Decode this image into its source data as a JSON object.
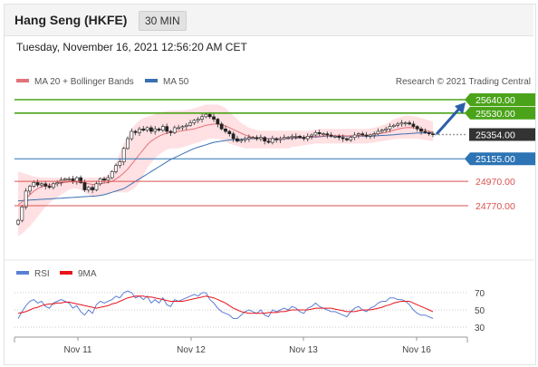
{
  "header": {
    "title": "Hang Seng (HKFE)",
    "timeframe": "30 MIN"
  },
  "timestamp": "Tuesday, November 16, 2021 12:56:20 AM CET",
  "legend": {
    "ma20_label": "MA 20 + Bollinger Bands",
    "ma50_label": "MA 50",
    "research": "Research © 2021 Trading Central",
    "rsi_label": "RSI",
    "ma9_label": "9MA"
  },
  "colors": {
    "resistance": "#4aa319",
    "support": "#2c74b4",
    "target": "#d9534f",
    "current": "#333333",
    "ma20": "#e2737a",
    "ma50": "#3a6fb0",
    "rsi": "#5b7fd6",
    "rsi_ma": "#e8141c",
    "band": "#ffd6d9"
  },
  "levels": [
    {
      "label": "25640.00",
      "value": 25640,
      "kind": "resistance"
    },
    {
      "label": "25530.00",
      "value": 25530,
      "kind": "resistance"
    },
    {
      "label": "25354.00",
      "value": 25354,
      "kind": "current"
    },
    {
      "label": "25155.00",
      "value": 25155,
      "kind": "support"
    },
    {
      "label": "24970.00",
      "value": 24970,
      "kind": "target"
    },
    {
      "label": "24770.00",
      "value": 24770,
      "kind": "target"
    }
  ],
  "chart_data": [
    {
      "type": "candlestick",
      "price_range": [
        24550,
        25750
      ],
      "x_labels": [
        "Nov 11",
        "Nov 12",
        "Nov 13",
        "Nov 16"
      ],
      "close": [
        24650,
        24760,
        24890,
        24930,
        24960,
        24940,
        24950,
        24930,
        24920,
        24950,
        24960,
        24980,
        24990,
        24990,
        24970,
        25000,
        24960,
        24900,
        24920,
        24900,
        24950,
        24990,
        24980,
        25000,
        25050,
        25100,
        25130,
        25240,
        25320,
        25380,
        25370,
        25400,
        25390,
        25410,
        25380,
        25400,
        25390,
        25420,
        25380,
        25370,
        25410,
        25410,
        25420,
        25430,
        25450,
        25470,
        25480,
        25500,
        25520,
        25500,
        25480,
        25440,
        25400,
        25380,
        25360,
        25320,
        25300,
        25310,
        25320,
        25330,
        25330,
        25320,
        25330,
        25300,
        25290,
        25320,
        25310,
        25320,
        25330,
        25330,
        25340,
        25340,
        25330,
        25320,
        25340,
        25350,
        25370,
        25360,
        25360,
        25350,
        25340,
        25340,
        25330,
        25320,
        25310,
        25330,
        25350,
        25360,
        25350,
        25340,
        25350,
        25360,
        25380,
        25390,
        25400,
        25420,
        25430,
        25440,
        25450,
        25450,
        25440,
        25420,
        25400,
        25380,
        25370,
        25360,
        25354
      ],
      "ma20": [
        24780,
        24800,
        24830,
        24860,
        24890,
        24910,
        24925,
        24935,
        24940,
        24945,
        24950,
        24955,
        24960,
        24965,
        24965,
        24965,
        24960,
        24955,
        24950,
        24945,
        24945,
        24950,
        24955,
        24960,
        24970,
        24990,
        25010,
        25040,
        25070,
        25110,
        25150,
        25190,
        25230,
        25270,
        25300,
        25320,
        25340,
        25355,
        25365,
        25370,
        25375,
        25380,
        25385,
        25390,
        25395,
        25400,
        25410,
        25420,
        25430,
        25435,
        25440,
        25440,
        25435,
        25425,
        25410,
        25395,
        25380,
        25365,
        25350,
        25340,
        25330,
        25325,
        25320,
        25318,
        25316,
        25316,
        25318,
        25320,
        25322,
        25324,
        25326,
        25328,
        25330,
        25332,
        25334,
        25336,
        25338,
        25340,
        25342,
        25343,
        25344,
        25344,
        25344,
        25344,
        25343,
        25342,
        25342,
        25343,
        25345,
        25347,
        25350,
        25355,
        25360,
        25365,
        25372,
        25380,
        25390,
        25398,
        25405,
        25410,
        25412,
        25410,
        25405,
        25398,
        25390,
        25382,
        25375
      ],
      "bb_upper": [
        25050,
        25040,
        25030,
        25020,
        25010,
        25005,
        25000,
        25000,
        25000,
        25000,
        25000,
        25000,
        25000,
        25000,
        25000,
        25000,
        25000,
        25000,
        25000,
        25000,
        25000,
        25005,
        25010,
        25020,
        25050,
        25120,
        25200,
        25280,
        25340,
        25400,
        25440,
        25470,
        25490,
        25500,
        25510,
        25520,
        25530,
        25540,
        25545,
        25550,
        25550,
        25550,
        25550,
        25555,
        25560,
        25570,
        25580,
        25590,
        25600,
        25600,
        25600,
        25600,
        25590,
        25570,
        25540,
        25510,
        25480,
        25450,
        25430,
        25410,
        25400,
        25390,
        25385,
        25385,
        25385,
        25385,
        25385,
        25385,
        25385,
        25385,
        25385,
        25385,
        25385,
        25385,
        25385,
        25390,
        25395,
        25400,
        25400,
        25400,
        25400,
        25400,
        25400,
        25400,
        25400,
        25400,
        25400,
        25400,
        25400,
        25400,
        25405,
        25410,
        25420,
        25430,
        25440,
        25460,
        25480,
        25490,
        25500,
        25510,
        25510,
        25505,
        25500,
        25490,
        25480,
        25470,
        25460
      ],
      "bb_lower": [
        24520,
        24540,
        24570,
        24600,
        24640,
        24680,
        24720,
        24760,
        24790,
        24820,
        24840,
        24860,
        24880,
        24900,
        24910,
        24910,
        24900,
        24880,
        24860,
        24850,
        24850,
        24850,
        24860,
        24870,
        24880,
        24880,
        24880,
        24880,
        24880,
        24900,
        24920,
        24960,
        25020,
        25080,
        25120,
        25160,
        25190,
        25210,
        25230,
        25240,
        25240,
        25240,
        25250,
        25260,
        25270,
        25280,
        25290,
        25300,
        25310,
        25320,
        25320,
        25320,
        25310,
        25300,
        25280,
        25270,
        25260,
        25250,
        25240,
        25240,
        25240,
        25240,
        25240,
        25240,
        25240,
        25240,
        25240,
        25240,
        25240,
        25240,
        25250,
        25255,
        25260,
        25265,
        25270,
        25275,
        25280,
        25280,
        25280,
        25280,
        25280,
        25280,
        25280,
        25280,
        25280,
        25280,
        25280,
        25280,
        25280,
        25280,
        25285,
        25290,
        25295,
        25300,
        25305,
        25310,
        25315,
        25320,
        25320,
        25320,
        25320,
        25320,
        25320,
        25315,
        25310,
        25305,
        25300
      ],
      "ma50": [
        24810,
        24812,
        24814,
        24816,
        24818,
        24820,
        24822,
        24824,
        24826,
        24828,
        24830,
        24832,
        24834,
        24836,
        24838,
        24840,
        24842,
        24844,
        24846,
        24848,
        24850,
        24855,
        24860,
        24870,
        24880,
        24890,
        24900,
        24910,
        24930,
        24950,
        24970,
        24990,
        25010,
        25030,
        25050,
        25070,
        25090,
        25110,
        25130,
        25150,
        25165,
        25180,
        25195,
        25210,
        25225,
        25240,
        25250,
        25260,
        25270,
        25280,
        25290,
        25295,
        25300,
        25305,
        25310,
        25312,
        25314,
        25316,
        25318,
        25320,
        25320,
        25320,
        25320,
        25320,
        25320,
        25320,
        25320,
        25320,
        25320,
        25320,
        25322,
        25324,
        25326,
        25328,
        25330,
        25332,
        25334,
        25336,
        25338,
        25340,
        25340,
        25340,
        25340,
        25340,
        25340,
        25340,
        25340,
        25340,
        25340,
        25340,
        25341,
        25342,
        25344,
        25346,
        25348,
        25350,
        25352,
        25355,
        25358,
        25360,
        25362,
        25364,
        25366,
        25367,
        25368,
        25369,
        25370
      ]
    },
    {
      "type": "line",
      "name": "RSI",
      "y_ticks": [
        70,
        50,
        30
      ],
      "rsi": [
        40,
        48,
        55,
        60,
        62,
        58,
        60,
        54,
        52,
        58,
        60,
        62,
        60,
        58,
        52,
        55,
        48,
        44,
        50,
        46,
        56,
        60,
        58,
        60,
        62,
        66,
        64,
        70,
        72,
        70,
        64,
        66,
        62,
        66,
        58,
        62,
        58,
        64,
        56,
        54,
        62,
        60,
        62,
        64,
        66,
        68,
        66,
        70,
        70,
        62,
        58,
        52,
        48,
        46,
        44,
        40,
        40,
        44,
        48,
        50,
        48,
        46,
        50,
        44,
        42,
        50,
        48,
        50,
        52,
        50,
        54,
        52,
        48,
        46,
        52,
        54,
        58,
        54,
        52,
        50,
        48,
        48,
        46,
        44,
        42,
        48,
        52,
        54,
        50,
        48,
        52,
        54,
        58,
        60,
        60,
        64,
        64,
        62,
        62,
        60,
        56,
        50,
        46,
        44,
        44,
        42,
        40
      ],
      "ma9": [
        46,
        47,
        48,
        50,
        52,
        53,
        55,
        56,
        57,
        57,
        58,
        58,
        59,
        59,
        58,
        57,
        56,
        55,
        54,
        53,
        52,
        53,
        54,
        55,
        57,
        58,
        60,
        62,
        64,
        65,
        66,
        66,
        66,
        65,
        65,
        64,
        63,
        62,
        61,
        60,
        60,
        60,
        60,
        61,
        62,
        63,
        64,
        65,
        66,
        65,
        64,
        62,
        60,
        58,
        55,
        52,
        50,
        48,
        47,
        46,
        46,
        46,
        46,
        46,
        47,
        47,
        47,
        48,
        48,
        49,
        50,
        50,
        50,
        50,
        50,
        51,
        52,
        52,
        52,
        52,
        52,
        51,
        50,
        49,
        48,
        48,
        48,
        49,
        50,
        50,
        50,
        51,
        52,
        53,
        55,
        56,
        58,
        59,
        60,
        60,
        60,
        58,
        56,
        54,
        52,
        50,
        48
      ]
    }
  ]
}
